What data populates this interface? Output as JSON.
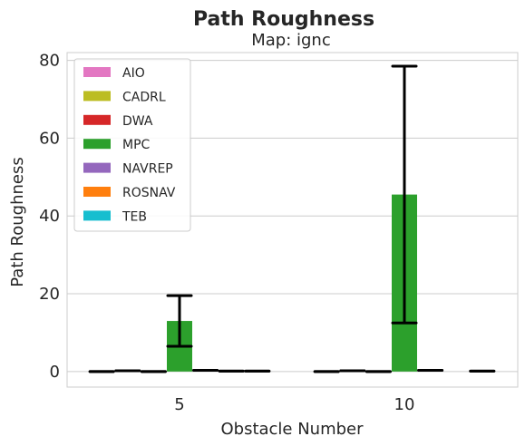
{
  "chart_data": {
    "type": "bar",
    "title": "Path Roughness",
    "subtitle": "Map: ignc",
    "xlabel": "Obstacle Number",
    "ylabel": "Path Roughness",
    "categories": [
      "5",
      "10"
    ],
    "ylim": [
      -4,
      82
    ],
    "yticks": [
      0,
      20,
      40,
      60,
      80
    ],
    "grid": true,
    "legend_position": "top-left",
    "series": [
      {
        "name": "AIO",
        "color": "#e377c2",
        "values": [
          0.0,
          0.0
        ],
        "err_low": [
          0.0,
          0.0
        ],
        "err_high": [
          0.0,
          0.0
        ]
      },
      {
        "name": "CADRL",
        "color": "#bcbd22",
        "values": [
          0.2,
          0.2
        ],
        "err_low": [
          0.2,
          0.2
        ],
        "err_high": [
          0.2,
          0.2
        ]
      },
      {
        "name": "DWA",
        "color": "#d62728",
        "values": [
          0.0,
          0.0
        ],
        "err_low": [
          0.0,
          0.0
        ],
        "err_high": [
          0.0,
          0.0
        ]
      },
      {
        "name": "MPC",
        "color": "#2ca02c",
        "values": [
          13.0,
          45.5
        ],
        "err_low": [
          6.5,
          12.5
        ],
        "err_high": [
          19.5,
          78.5
        ]
      },
      {
        "name": "NAVREP",
        "color": "#9467bd",
        "values": [
          0.3,
          0.3
        ],
        "err_low": [
          0.3,
          0.3
        ],
        "err_high": [
          0.3,
          0.3
        ]
      },
      {
        "name": "ROSNAV",
        "color": "#ff7f0e",
        "values": [
          0.1,
          null
        ],
        "err_low": [
          0.1,
          null
        ],
        "err_high": [
          0.1,
          null
        ]
      },
      {
        "name": "TEB",
        "color": "#17becf",
        "values": [
          0.1,
          0.1
        ],
        "err_low": [
          0.1,
          0.1
        ],
        "err_high": [
          0.1,
          0.1
        ]
      }
    ]
  }
}
